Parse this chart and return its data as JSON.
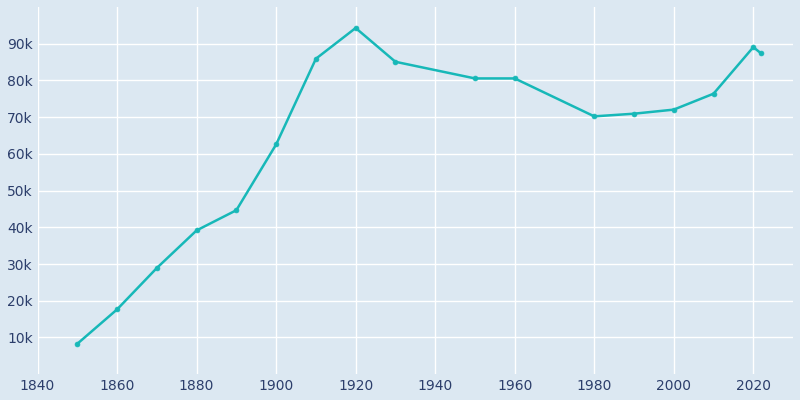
{
  "years": [
    1850,
    1860,
    1870,
    1880,
    1890,
    1900,
    1910,
    1920,
    1930,
    1950,
    1960,
    1980,
    1990,
    2000,
    2010,
    2020,
    2022
  ],
  "population": [
    8282,
    17639,
    28921,
    39151,
    44654,
    62559,
    85892,
    94270,
    85068,
    80536,
    80536,
    70207,
    70933,
    72043,
    76377,
    89050,
    87325
  ],
  "line_color": "#17b8b8",
  "marker_color": "#17b8b8",
  "bg_color": "#dce8f2",
  "axes_bg_color": "#dce8f2",
  "grid_color": "#ffffff",
  "title": "",
  "title_color": "#2c3e6b",
  "tick_color": "#2c3e6b",
  "xlim": [
    1840,
    2030
  ],
  "ylim": [
    0,
    100000
  ],
  "yticks": [
    10000,
    20000,
    30000,
    40000,
    50000,
    60000,
    70000,
    80000,
    90000
  ],
  "ytick_labels": [
    "10k",
    "20k",
    "30k",
    "40k",
    "50k",
    "60k",
    "70k",
    "80k",
    "90k"
  ],
  "xticks": [
    1840,
    1860,
    1880,
    1900,
    1920,
    1940,
    1960,
    1980,
    2000,
    2020
  ],
  "linewidth": 1.8,
  "markersize": 3.5
}
